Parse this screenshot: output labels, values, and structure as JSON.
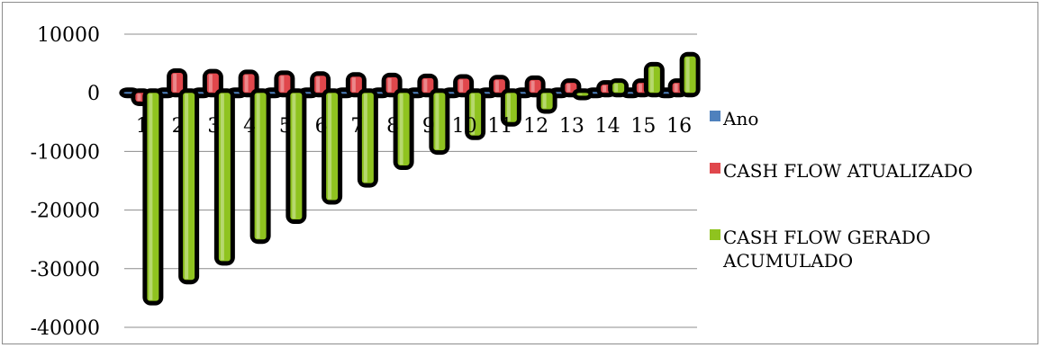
{
  "chart_data": {
    "type": "bar",
    "categories": [
      "1",
      "2",
      "3",
      "4",
      "5",
      "6",
      "7",
      "8",
      "9",
      "10",
      "11",
      "12",
      "13",
      "14",
      "15",
      "16"
    ],
    "series": [
      {
        "name": "Ano",
        "color": "#4f81bd",
        "values": [
          1,
          2,
          3,
          4,
          5,
          6,
          7,
          8,
          9,
          10,
          11,
          12,
          13,
          14,
          15,
          16
        ]
      },
      {
        "name": "CASH FLOW ATUALIZADO",
        "color": "#e0474c",
        "values": [
          -1500,
          3400,
          3300,
          3200,
          3050,
          2900,
          2750,
          2650,
          2500,
          2400,
          2300,
          2200,
          1700,
          1400,
          1700,
          1700
        ]
      },
      {
        "name": "CASH FLOW GERADO ACUMULADO",
        "color": "#8fc31f",
        "values": [
          -35500,
          -31900,
          -28700,
          -25000,
          -21600,
          -18300,
          -15400,
          -12400,
          -9800,
          -7300,
          -5000,
          -2800,
          -500,
          1700,
          4500,
          6200
        ]
      }
    ],
    "ylim": [
      -40000,
      10000
    ],
    "yticks": [
      "10000",
      "0",
      "-10000",
      "-20000",
      "-30000",
      "-40000"
    ],
    "grid": true,
    "legend_position": "right"
  }
}
